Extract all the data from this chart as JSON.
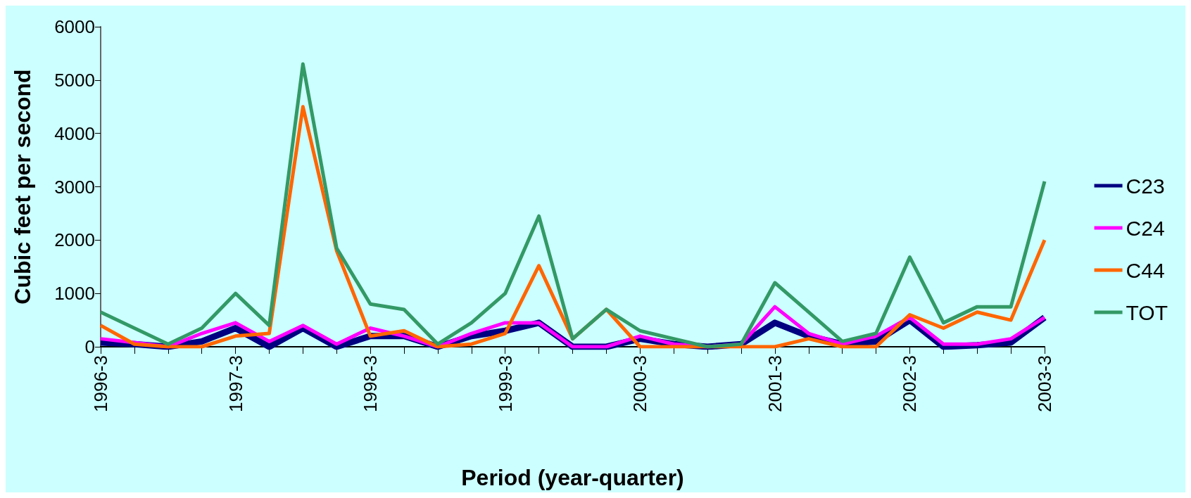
{
  "chart_data": {
    "type": "line",
    "xlabel": "Period (year-quarter)",
    "ylabel": "Cubic feet per second",
    "categories": [
      "1996-3",
      null,
      null,
      null,
      "1997-3",
      null,
      null,
      null,
      "1998-3",
      null,
      null,
      null,
      "1999-3",
      null,
      null,
      null,
      "2000-3",
      null,
      null,
      null,
      "2001-3",
      null,
      null,
      null,
      "2002-3",
      null,
      null,
      null,
      "2003-3"
    ],
    "series": [
      {
        "name": "C23",
        "color": "#000080",
        "values": [
          80,
          50,
          0,
          100,
          350,
          0,
          350,
          0,
          200,
          200,
          0,
          200,
          300,
          450,
          0,
          0,
          150,
          50,
          0,
          50,
          450,
          200,
          50,
          100,
          500,
          0,
          30,
          80,
          550
        ]
      },
      {
        "name": "C24",
        "color": "#ff00ff",
        "values": [
          150,
          80,
          0,
          250,
          450,
          100,
          400,
          50,
          350,
          200,
          0,
          250,
          450,
          450,
          0,
          0,
          200,
          50,
          0,
          50,
          750,
          250,
          50,
          200,
          550,
          50,
          50,
          150,
          550
        ]
      },
      {
        "name": "C44",
        "color": "#ff6600",
        "values": [
          400,
          50,
          0,
          0,
          200,
          250,
          4500,
          1800,
          200,
          300,
          0,
          50,
          250,
          1520,
          150,
          700,
          0,
          0,
          0,
          0,
          0,
          150,
          0,
          0,
          600,
          350,
          650,
          500,
          2000
        ]
      },
      {
        "name": "TOT",
        "color": "#339966",
        "values": [
          650,
          350,
          50,
          350,
          1000,
          400,
          5300,
          1850,
          800,
          700,
          50,
          450,
          1000,
          2450,
          150,
          700,
          300,
          150,
          0,
          50,
          1200,
          650,
          100,
          250,
          1680,
          450,
          750,
          750,
          3100
        ]
      }
    ],
    "ylim": [
      0,
      6000
    ],
    "yticks": [
      0,
      1000,
      2000,
      3000,
      4000,
      5000,
      6000
    ],
    "grid": false,
    "legend": "right",
    "marker": "none",
    "line_style": "solid"
  }
}
